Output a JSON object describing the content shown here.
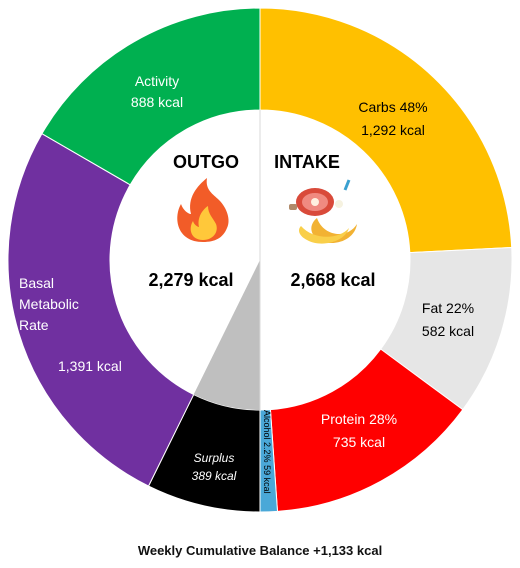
{
  "chart_data": {
    "type": "donut",
    "caption": "Weekly Cumulative Balance +1,133 kcal",
    "outgo": {
      "heading": "OUTGO",
      "total": "2,279 kcal",
      "icon": "flame-icon",
      "segments": [
        {
          "name": "Activity",
          "value": 888,
          "value_label": "888 kcal",
          "color": "#00b050"
        },
        {
          "name": "Basal Metabolic Rate",
          "label_lines": [
            "Basal",
            "Metabolic",
            "Rate"
          ],
          "value": 1391,
          "value_label": "1,391 kcal",
          "color": "#7030a0"
        }
      ]
    },
    "intake": {
      "heading": "INTAKE",
      "total": "2,668 kcal",
      "icon": "food-icon",
      "segments": [
        {
          "name": "Carbs",
          "percent": "48%",
          "value": 1292,
          "value_label": "1,292 kcal",
          "color": "#ffc000"
        },
        {
          "name": "Fat",
          "percent": "22%",
          "value": 582,
          "value_label": "582 kcal",
          "color": "#e6e6e6"
        },
        {
          "name": "Protein",
          "percent": "28%",
          "value": 735,
          "value_label": "735 kcal",
          "color": "#ff0000"
        },
        {
          "name": "Alcohol",
          "percent": "2.2%",
          "value": 59,
          "value_label": "59 kcal",
          "color": "#4aa8d8"
        }
      ]
    },
    "surplus": {
      "name": "Surplus",
      "value": 389,
      "value_label": "389 kcal",
      "color": "#000000",
      "inner_color": "#bfbfbf"
    }
  }
}
